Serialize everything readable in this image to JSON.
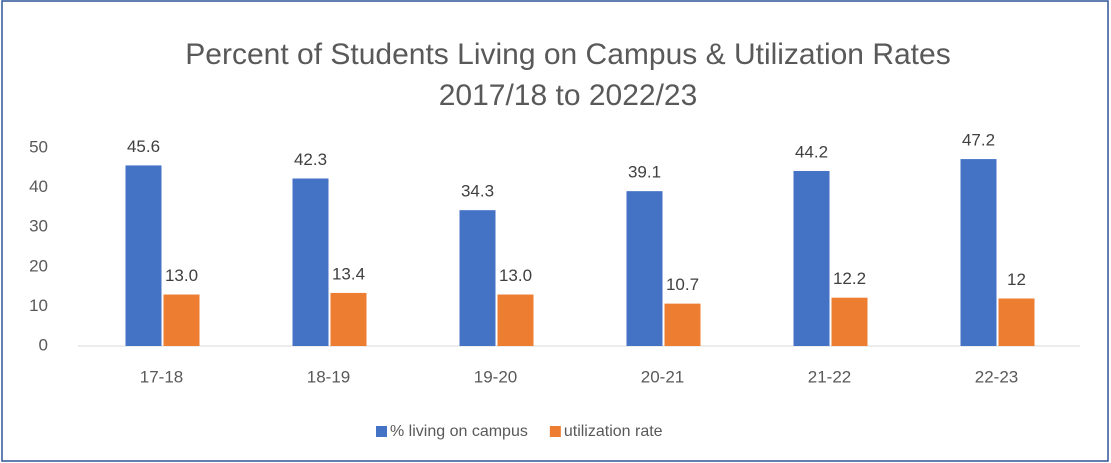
{
  "chart_data": {
    "type": "bar",
    "title": "Percent of Students Living on Campus & Utilization Rates",
    "subtitle": "2017/18 to 2022/23",
    "categories": [
      "17-18",
      "18-19",
      "19-20",
      "20-21",
      "21-22",
      "22-23"
    ],
    "series": [
      {
        "name": "% living on campus",
        "color": "#4472c4",
        "values": [
          45.6,
          42.3,
          34.3,
          39.1,
          44.2,
          47.2
        ]
      },
      {
        "name": "utilization rate",
        "color": "#ed7d31",
        "values": [
          13,
          13.4,
          13,
          10.7,
          12.2,
          12
        ],
        "value_labels": [
          "13.0",
          "13.4",
          "13.0",
          "10.7",
          "12.2",
          "12"
        ]
      }
    ],
    "ylim": [
      0,
      50
    ],
    "yticks": [
      0,
      10,
      20,
      30,
      40,
      50
    ],
    "grid": false,
    "legend": "bottom"
  }
}
